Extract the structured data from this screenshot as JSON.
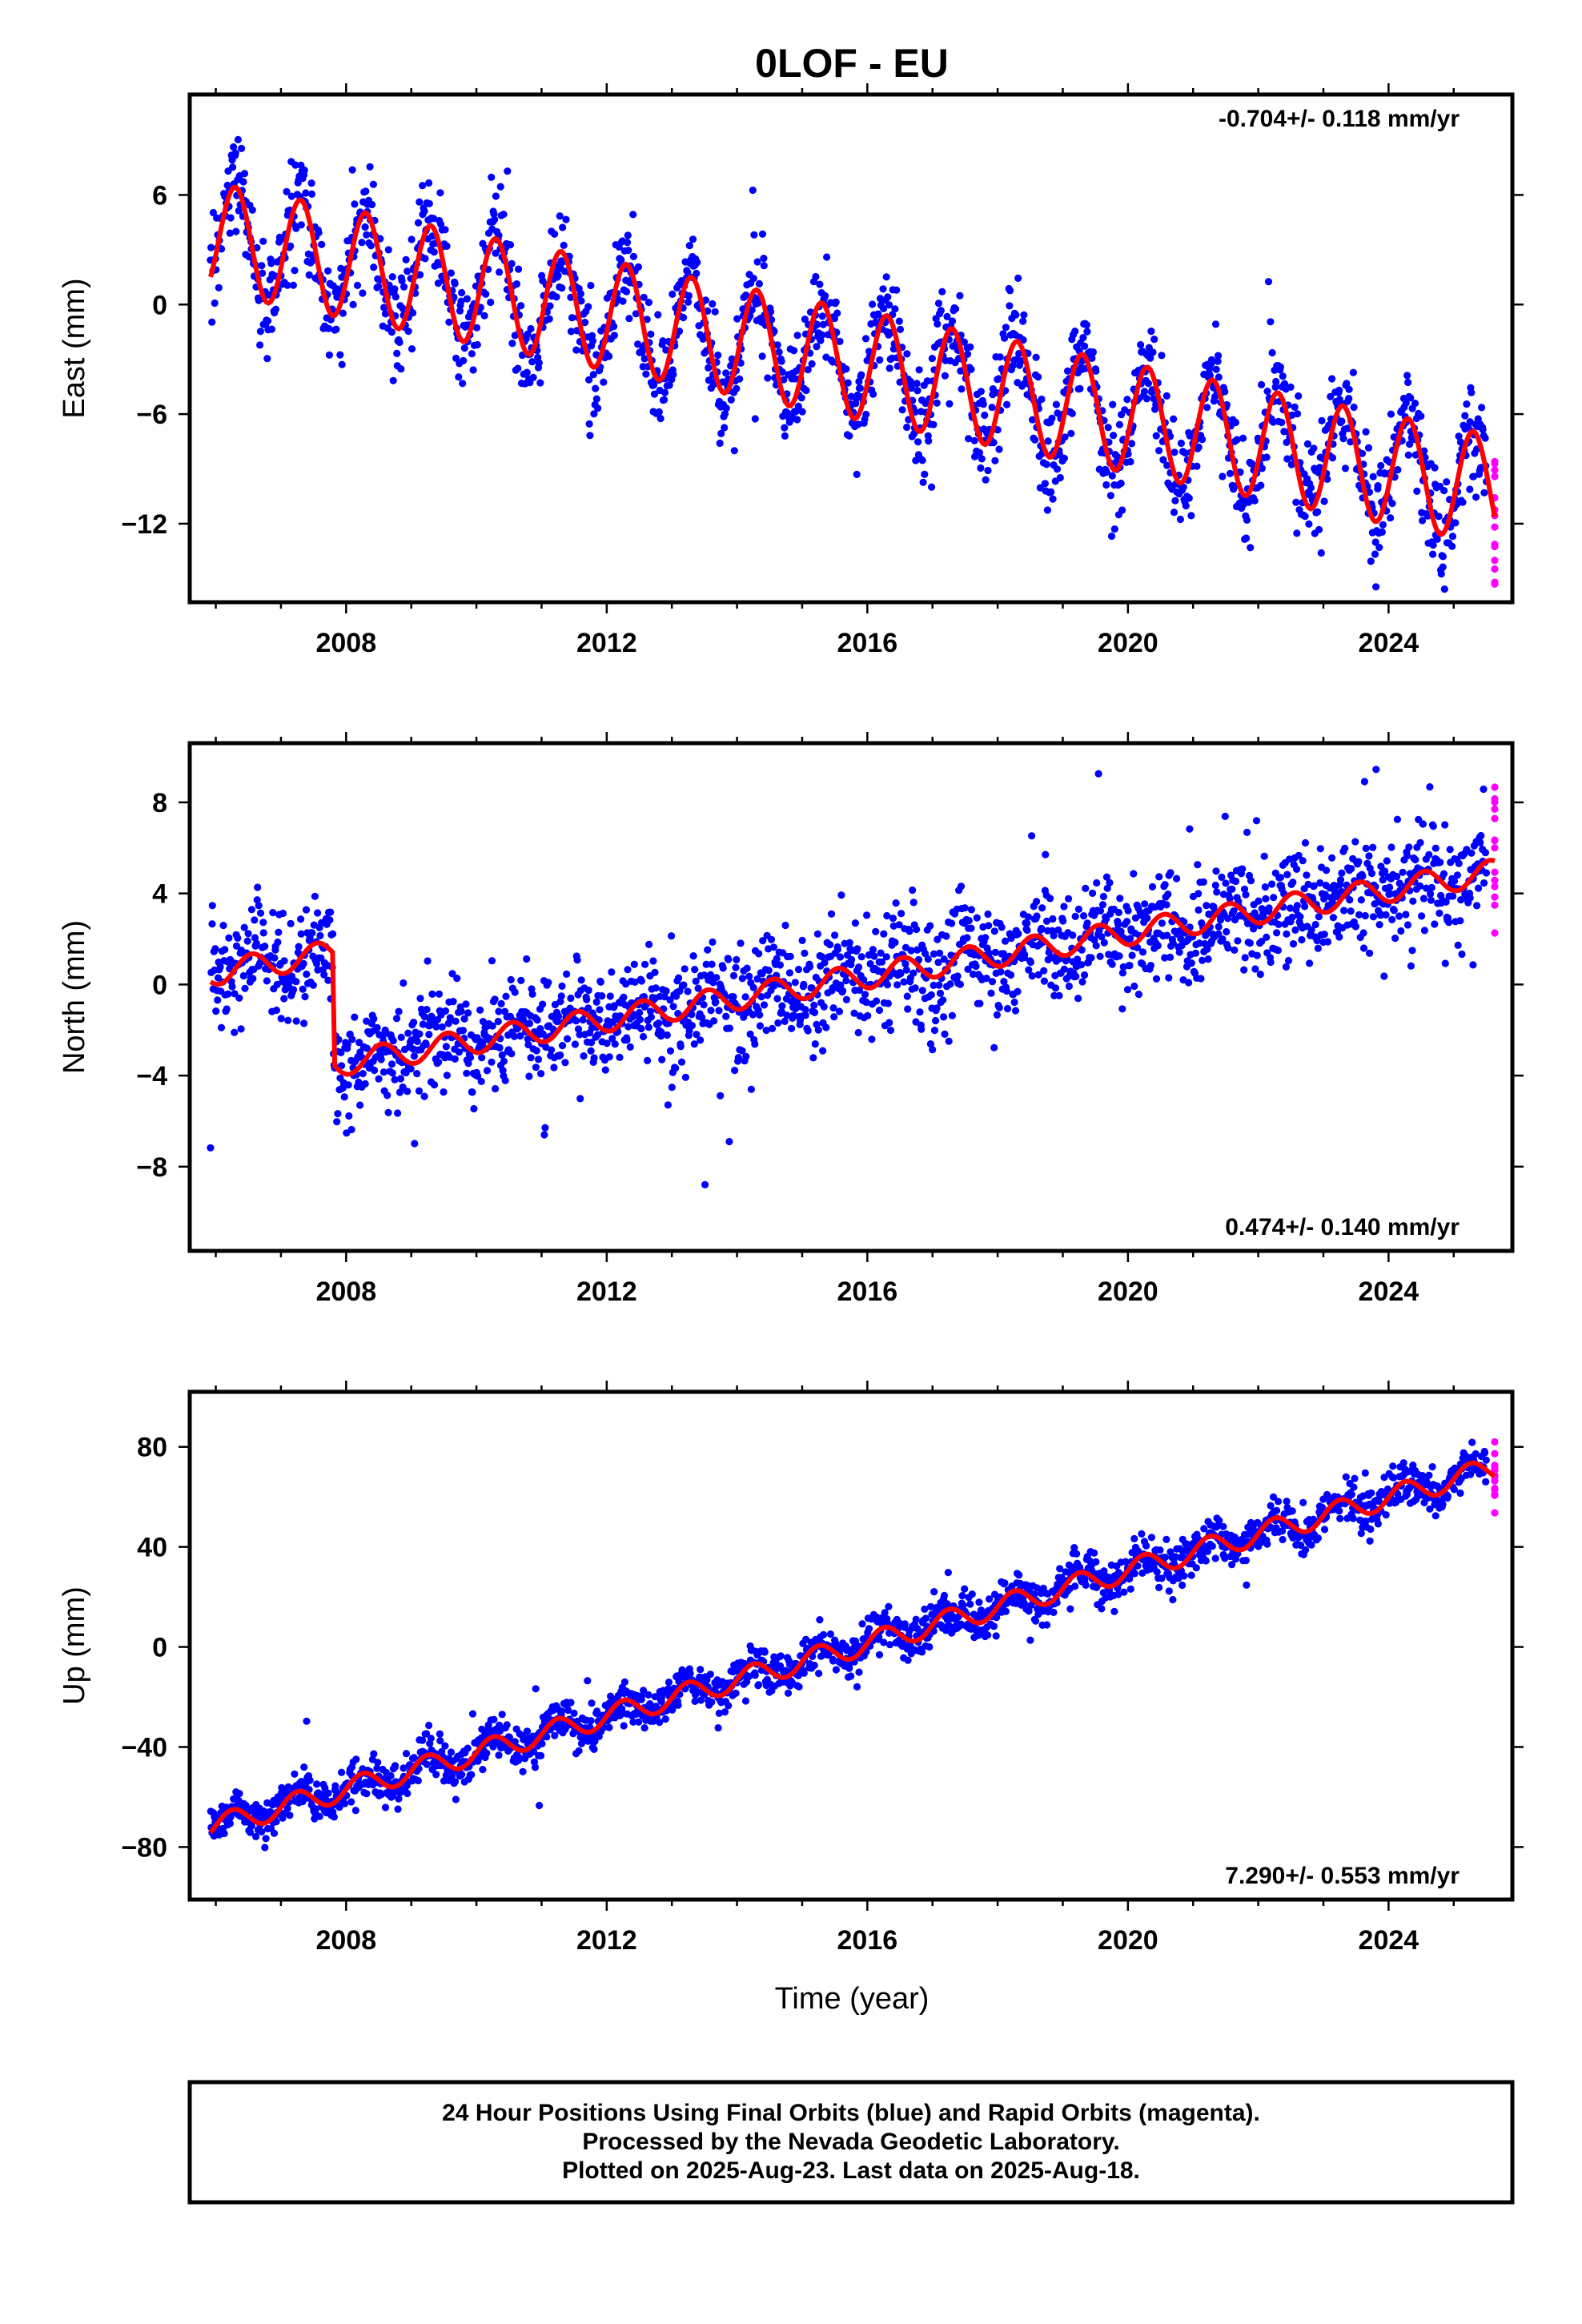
{
  "figure": {
    "title": "0LOF - EU",
    "xlabel": "Time (year)",
    "footer": [
      "24 Hour Positions Using Final Orbits (blue) and Rapid Orbits (magenta).",
      "Processed by the Nevada Geodetic Laboratory.",
      "Plotted on 2025-Aug-23. Last data on 2025-Aug-18."
    ],
    "colors": {
      "final": "#0000ff",
      "rapid": "#ff00ff",
      "model": "#ff0000"
    }
  },
  "chart_data": [
    {
      "type": "scatter",
      "ylabel": "East (mm)",
      "rate_label": "-0.704+/- 0.118 mm/yr",
      "rate_position": "top-right",
      "xlim": [
        2005.6,
        2025.9
      ],
      "ylim": [
        -16.3,
        11.5
      ],
      "xticks": [
        2008,
        2012,
        2016,
        2020,
        2024
      ],
      "yticks": [
        -12,
        -6,
        0,
        6
      ],
      "start": 2005.92,
      "end_final": 2025.5,
      "end_rapid": 2025.63,
      "model": {
        "offset": 3.7,
        "rate": -0.704,
        "annual_amp": 3.0,
        "annual_phase": 0.3,
        "semiannual_amp": 0.0,
        "steps": []
      },
      "noise_sd": 1.4,
      "series": [
        {
          "name": "Final Orbits",
          "color": "#0000ff"
        },
        {
          "name": "Rapid Orbits",
          "color": "#ff00ff"
        },
        {
          "name": "Model",
          "color": "#ff0000"
        }
      ]
    },
    {
      "type": "scatter",
      "ylabel": "North (mm)",
      "rate_label": "0.474+/- 0.140 mm/yr",
      "rate_position": "bottom-right",
      "xlim": [
        2005.6,
        2025.9
      ],
      "ylim": [
        -11.7,
        10.6
      ],
      "xticks": [
        2008,
        2012,
        2016,
        2020,
        2024
      ],
      "yticks": [
        -8,
        -4,
        0,
        4,
        8
      ],
      "start": 2005.92,
      "end_final": 2025.5,
      "end_rapid": 2025.63,
      "model": {
        "offset": -4.4,
        "rate": 0.474,
        "annual_amp": 0.55,
        "annual_phase": 0.55,
        "semiannual_amp": 0.0,
        "steps": [
          {
            "start": 2005.92,
            "end": 2007.8,
            "value": 4.9
          }
        ]
      },
      "noise_sd": 1.2,
      "series": [
        {
          "name": "Final Orbits",
          "color": "#0000ff"
        },
        {
          "name": "Rapid Orbits",
          "color": "#ff00ff"
        },
        {
          "name": "Model",
          "color": "#ff0000"
        }
      ]
    },
    {
      "type": "scatter",
      "ylabel": "Up (mm)",
      "rate_label": "7.290+/- 0.553 mm/yr",
      "rate_position": "bottom-right",
      "xlim": [
        2005.6,
        2025.9
      ],
      "ylim": [
        -101,
        102
      ],
      "xticks": [
        2008,
        2012,
        2016,
        2020,
        2024
      ],
      "yticks": [
        -80,
        -40,
        0,
        40,
        80
      ],
      "start": 2005.92,
      "end_final": 2025.5,
      "end_rapid": 2025.63,
      "model": {
        "offset": -72,
        "rate": 7.29,
        "annual_amp": 4.5,
        "annual_phase": 0.25,
        "semiannual_amp": 0.0,
        "steps": []
      },
      "noise_sd": 4.2,
      "series": [
        {
          "name": "Final Orbits",
          "color": "#0000ff"
        },
        {
          "name": "Rapid Orbits",
          "color": "#ff00ff"
        },
        {
          "name": "Model",
          "color": "#ff0000"
        }
      ]
    }
  ]
}
